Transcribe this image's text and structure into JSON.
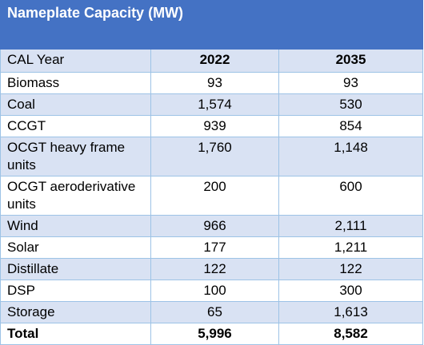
{
  "table": {
    "title": "Nameplate Capacity (MW)",
    "header": {
      "label": "CAL Year",
      "col1": "2022",
      "col2": "2035"
    },
    "rows": [
      {
        "label": "Biomass",
        "v2022": "93",
        "v2035": "93"
      },
      {
        "label": "Coal",
        "v2022": "1,574",
        "v2035": "530"
      },
      {
        "label": "CCGT",
        "v2022": "939",
        "v2035": "854"
      },
      {
        "label": "OCGT heavy frame units",
        "v2022": "1,760",
        "v2035": "1,148"
      },
      {
        "label": "OCGT aeroderivative units",
        "v2022": "200",
        "v2035": "600"
      },
      {
        "label": "Wind",
        "v2022": "966",
        "v2035": "2,111"
      },
      {
        "label": "Solar",
        "v2022": "177",
        "v2035": "1,211"
      },
      {
        "label": "Distillate",
        "v2022": "122",
        "v2035": "122"
      },
      {
        "label": "DSP",
        "v2022": "100",
        "v2035": "300"
      },
      {
        "label": "Storage",
        "v2022": "65",
        "v2035": "1,613"
      }
    ],
    "total": {
      "label": "Total",
      "v2022": "5,996",
      "v2035": "8,582"
    }
  },
  "colors": {
    "header_bg": "#4472c4",
    "band_bg": "#d9e2f3",
    "border": "#9dc3e6"
  }
}
